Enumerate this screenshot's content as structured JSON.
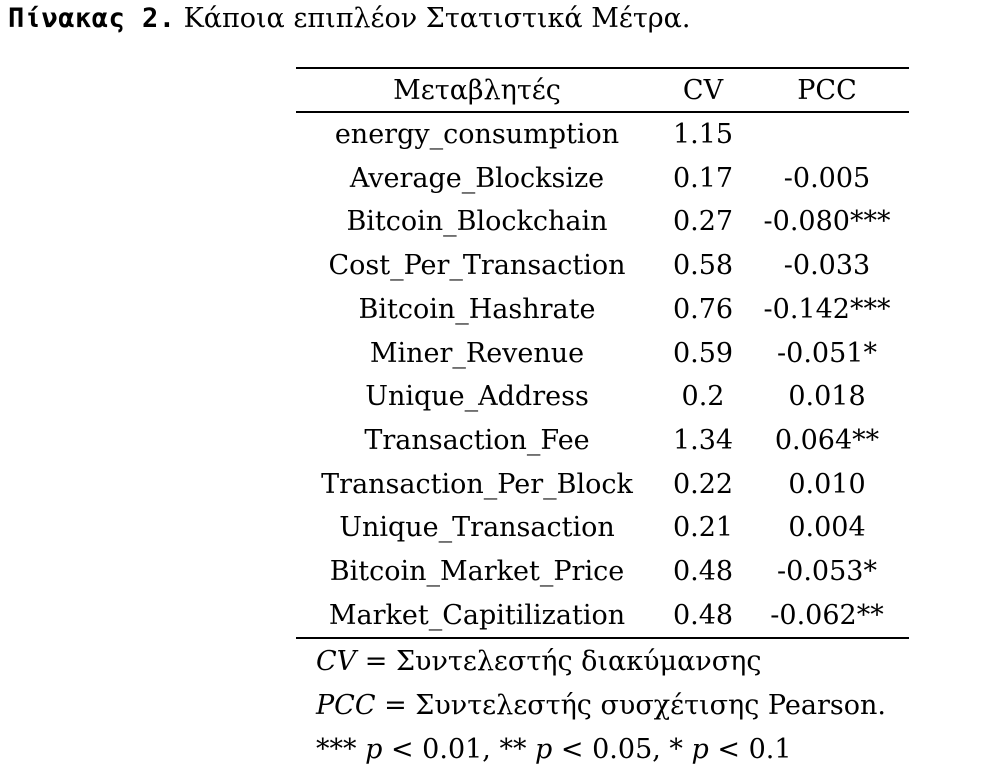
{
  "caption": {
    "label": "Πίνακας 2.",
    "text": "Κάποια επιπλέον Στατιστικά Μέτρα."
  },
  "table": {
    "headers": [
      "Μεταβλητές",
      "CV",
      "PCC"
    ],
    "rows": [
      [
        "energy_consumption",
        "1.15",
        ""
      ],
      [
        "Average_Blocksize",
        "0.17",
        "-0.005"
      ],
      [
        "Bitcoin_Blockchain",
        "0.27",
        "-0.080***"
      ],
      [
        "Cost_Per_Transaction",
        "0.58",
        "-0.033"
      ],
      [
        "Bitcoin_Hashrate",
        "0.76",
        "-0.142***"
      ],
      [
        "Miner_Revenue",
        "0.59",
        "-0.051*"
      ],
      [
        "Unique_Address",
        "0.2",
        "0.018"
      ],
      [
        "Transaction_Fee",
        "1.34",
        "0.064**"
      ],
      [
        "Transaction_Per_Block",
        "0.22",
        "0.010"
      ],
      [
        "Unique_Transaction",
        "0.21",
        "0.004"
      ],
      [
        "Bitcoin_Market_Price",
        "0.48",
        "-0.053*"
      ],
      [
        "Market_Capitilization",
        "0.48",
        "-0.062**"
      ]
    ]
  },
  "notes": {
    "cv_symbol": "CV",
    "cv_def": "= Συντελεστής διακύμανσης",
    "pcc_symbol": "PCC",
    "pcc_def": "= Συντελεστής συσχέτισης Pearson.",
    "sig_1": "*** ",
    "sig_1_p": "p",
    "sig_1_rest": " < 0.01, ** ",
    "sig_2_p": "p",
    "sig_2_rest": " < 0.05, * ",
    "sig_3_p": "p",
    "sig_3_rest": " < 0.1"
  }
}
